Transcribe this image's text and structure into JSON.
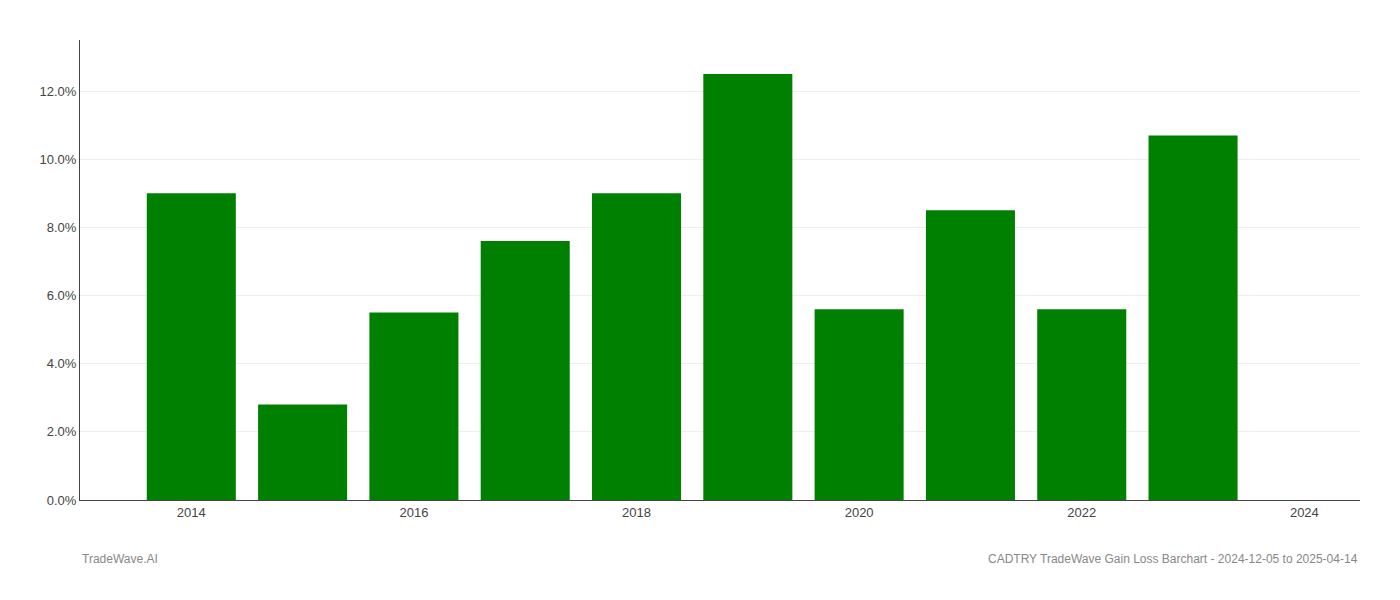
{
  "chart_data": {
    "type": "bar",
    "x": [
      2014,
      2015,
      2016,
      2017,
      2018,
      2019,
      2020,
      2021,
      2022,
      2023
    ],
    "values": [
      0.09,
      0.028,
      0.055,
      0.076,
      0.09,
      0.125,
      0.056,
      0.085,
      0.056,
      0.107
    ],
    "color": "#008000",
    "xlim": [
      2013.0,
      2024.5
    ],
    "xticks": [
      2014,
      2016,
      2018,
      2020,
      2022,
      2024
    ],
    "ylim": [
      0.0,
      0.135
    ],
    "yticks": [
      {
        "value": 0.0,
        "label": "0.0%"
      },
      {
        "value": 0.02,
        "label": "2.0%"
      },
      {
        "value": 0.04,
        "label": "4.0%"
      },
      {
        "value": 0.06,
        "label": "6.0%"
      },
      {
        "value": 0.08,
        "label": "8.0%"
      },
      {
        "value": 0.1,
        "label": "10.0%"
      },
      {
        "value": 0.12,
        "label": "12.0%"
      }
    ],
    "grid": true,
    "annotations": [
      "TradeWave.AI",
      "CADTRY TradeWave Gain Loss Barchart - 2024-12-05 to 2025-04-14"
    ]
  }
}
